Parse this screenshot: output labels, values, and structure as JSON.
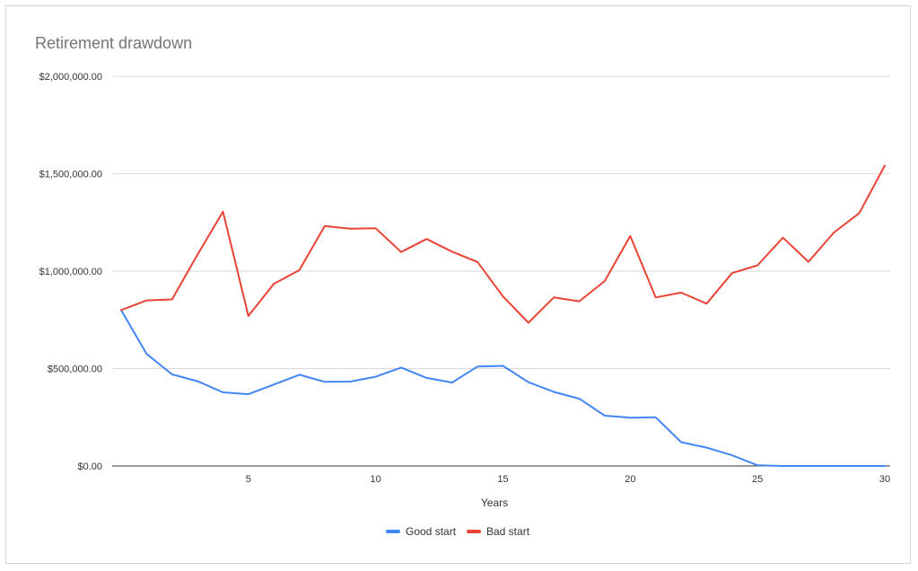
{
  "chart_data": {
    "type": "line",
    "title": "Retirement drawdown",
    "xlabel": "Years",
    "ylabel": "",
    "xlim": [
      0,
      30
    ],
    "ylim": [
      0,
      2000000
    ],
    "grid": true,
    "legend_position": "bottom",
    "x_ticks": [
      5,
      10,
      15,
      20,
      25,
      30
    ],
    "x_tick_labels": [
      "5",
      "10",
      "15",
      "20",
      "25",
      "30"
    ],
    "y_ticks": [
      0,
      500000,
      1000000,
      1500000,
      2000000
    ],
    "y_tick_labels": [
      "$0.00",
      "$500,000.00",
      "$1,000,000.00",
      "$1,500,000.00",
      "$2,000,000.00"
    ],
    "x": [
      0,
      1,
      2,
      3,
      4,
      5,
      6,
      7,
      8,
      9,
      10,
      11,
      12,
      13,
      14,
      15,
      16,
      17,
      18,
      19,
      20,
      21,
      22,
      23,
      24,
      25,
      26,
      27,
      28,
      29,
      30
    ],
    "series": [
      {
        "name": "Good start",
        "color": "#4285f4",
        "values": [
          800000,
          575000,
          470000,
          435000,
          378000,
          368000,
          418000,
          468000,
          432000,
          433000,
          458000,
          505000,
          452000,
          428000,
          510000,
          514000,
          430000,
          380000,
          345000,
          258000,
          248000,
          250000,
          122000,
          94000,
          55000,
          3000,
          0,
          0,
          0,
          0,
          0
        ]
      },
      {
        "name": "Bad start",
        "color": "#ea4335",
        "values": [
          800000,
          850000,
          855000,
          1085000,
          1305000,
          770000,
          935000,
          1005000,
          1232000,
          1218000,
          1220000,
          1098000,
          1165000,
          1100000,
          1047000,
          870000,
          735000,
          865000,
          845000,
          950000,
          1180000,
          865000,
          890000,
          833000,
          990000,
          1030000,
          1172000,
          1048000,
          1198000,
          1298000,
          1542000
        ]
      }
    ]
  }
}
